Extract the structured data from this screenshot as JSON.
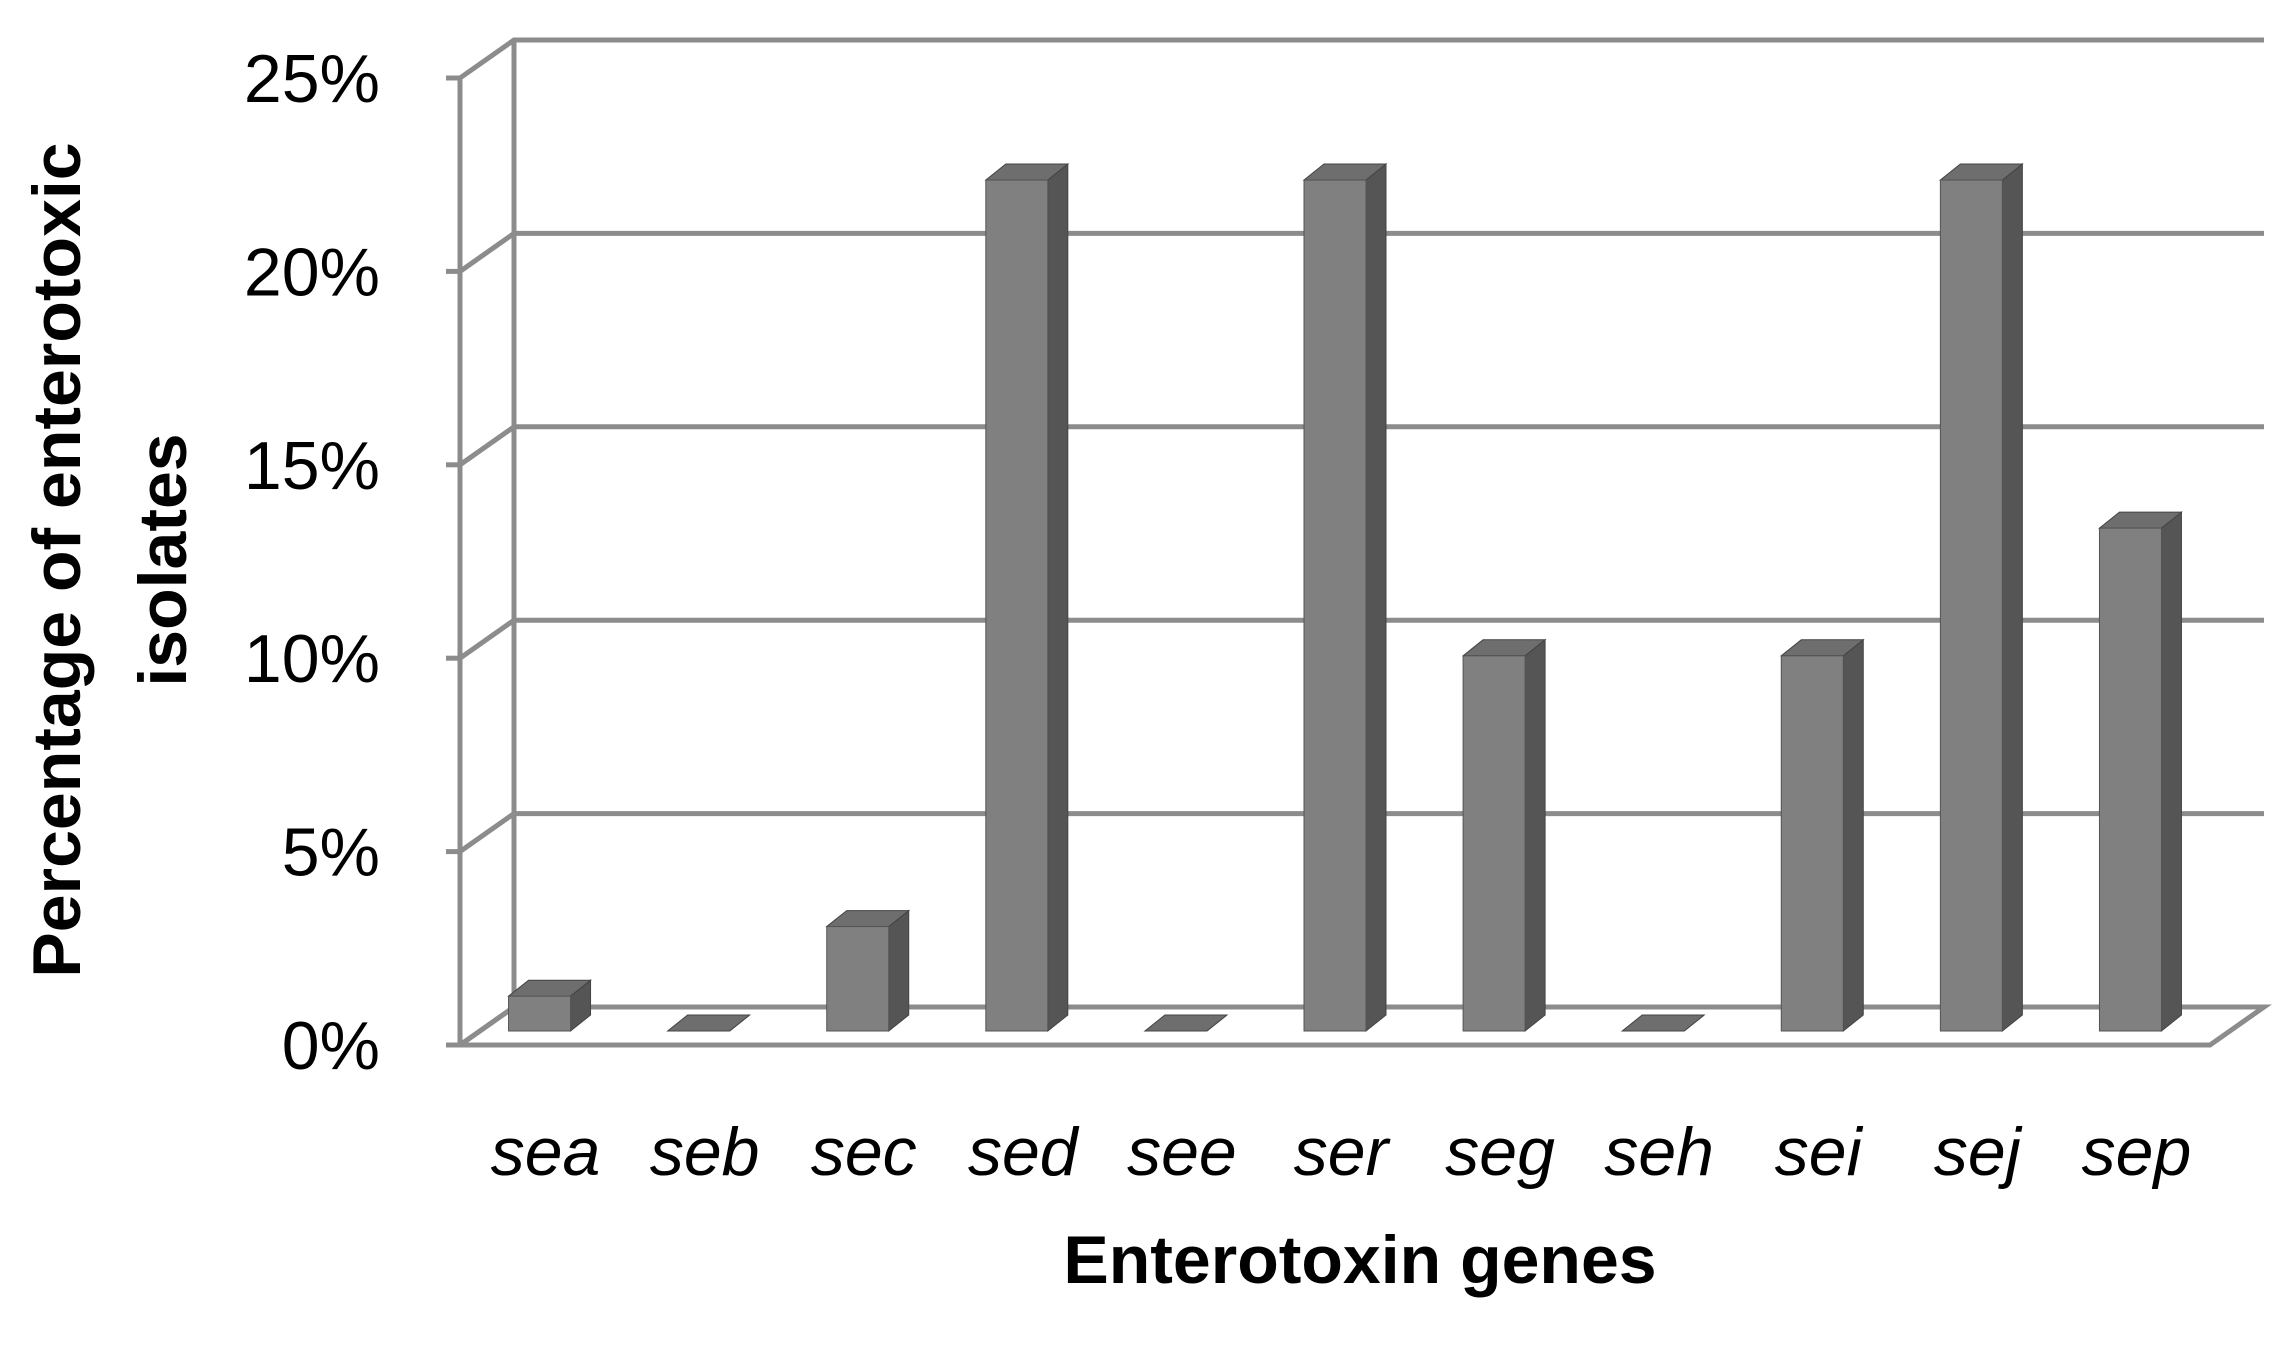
{
  "chart_data": {
    "type": "bar",
    "title": "",
    "xlabel": "Enterotoxin genes",
    "ylabel_lines": [
      "Percentage of enterotoxic",
      "isolates"
    ],
    "categories": [
      "sea",
      "seb",
      "sec",
      "sed",
      "see",
      "ser",
      "seg",
      "seh",
      "sei",
      "sej",
      "sep"
    ],
    "series": [
      {
        "values": [
          0.9,
          0,
          2.7,
          22,
          0,
          22,
          9.7,
          0,
          9.7,
          22,
          13
        ]
      }
    ],
    "ylim": [
      0,
      25
    ],
    "yticks": [
      "0%",
      "5%",
      "10%",
      "15%",
      "20%",
      "25%"
    ],
    "grid": true,
    "legend": "none",
    "style": "3d",
    "colors": {
      "bar_front": "#808080",
      "bar_side": "#555555",
      "bar_top": "#6e6e6e",
      "grid": "#8c8c8c"
    }
  }
}
